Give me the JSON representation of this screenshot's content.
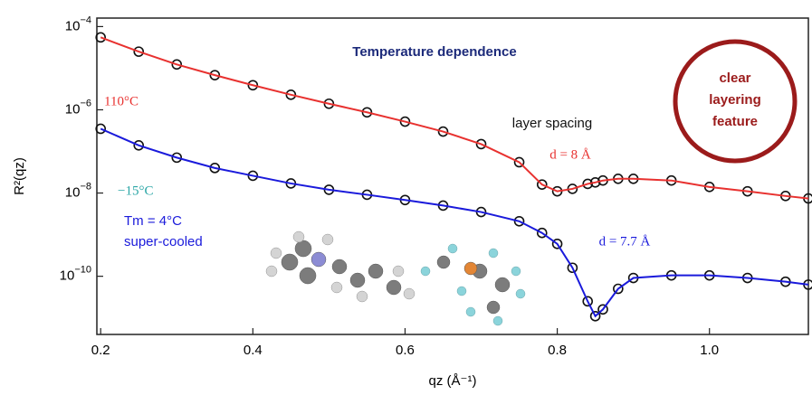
{
  "chart_data": {
    "type": "scatter",
    "title": "Temperature dependence",
    "x_label": "qz (Å⁻¹)",
    "y_label": "R²(qz)",
    "log_y": true,
    "xlim": [
      0.195,
      1.13
    ],
    "ylim": [
      4e-12,
      0.00016
    ],
    "xticks": [
      0.2,
      0.4,
      0.6,
      0.8,
      {
        "value": 1,
        "label": "1.0"
      }
    ],
    "yticks": [
      {
        "value": 0.0001,
        "label": "10−4"
      },
      {
        "value": 1e-06,
        "label": "10−6"
      },
      {
        "value": 1e-08,
        "label": "10−8"
      },
      {
        "value": 1e-10,
        "label": "10−10"
      }
    ],
    "marker_color": "#111111",
    "x": [
      0.2,
      0.25,
      0.3,
      0.35,
      0.4,
      0.45,
      0.5,
      0.55,
      0.6,
      0.65,
      0.7,
      0.75,
      0.78,
      0.8,
      0.82,
      0.84,
      0.85,
      0.86,
      0.88,
      0.9,
      0.95,
      1.0,
      1.05,
      1.1,
      1.13
    ],
    "series": [
      {
        "name": "110°C",
        "color": "#e8312f",
        "values": [
          5.5e-05,
          2.5e-05,
          1.23e-05,
          6.8e-06,
          3.9e-06,
          2.3e-06,
          1.4e-06,
          8.7e-07,
          5.2e-07,
          3e-07,
          1.5e-07,
          5.5e-08,
          1.6e-08,
          1.1e-08,
          1.26e-08,
          1.66e-08,
          1.8e-08,
          2e-08,
          2.2e-08,
          2.2e-08,
          2e-08,
          1.4e-08,
          1.1e-08,
          8.5e-09,
          7.4e-09
        ]
      },
      {
        "name": "−15°C",
        "color": "#1a1adb",
        "values": [
          3.5e-07,
          1.4e-07,
          7.1e-08,
          4e-08,
          2.6e-08,
          1.7e-08,
          1.2e-08,
          9.1e-09,
          6.8e-09,
          5e-09,
          3.5e-09,
          2.1e-09,
          1.1e-09,
          6e-10,
          1.6e-10,
          2.5e-11,
          1.1e-11,
          1.6e-11,
          5e-11,
          9.1e-11,
          1.05e-10,
          1.05e-10,
          9.1e-11,
          7.4e-11,
          6.3e-11
        ]
      }
    ],
    "annotations": [
      {
        "text": "110°C",
        "color": "#e8312f"
      },
      {
        "text": "layer spacing",
        "color": "#111111"
      },
      {
        "text": "d = 8 Å",
        "color": "#e8312f"
      },
      {
        "text": "−15°C",
        "color": "#2aa6a6"
      },
      {
        "text": "Tm = 4°C",
        "color": "#1a1adb"
      },
      {
        "text": "super-cooled",
        "color": "#1a1adb"
      },
      {
        "text": "d = 7.7 Å",
        "color": "#1a1adb"
      }
    ],
    "callout": {
      "lines": [
        "clear",
        "layering",
        "feature"
      ],
      "color": "#9b1b1b"
    }
  }
}
